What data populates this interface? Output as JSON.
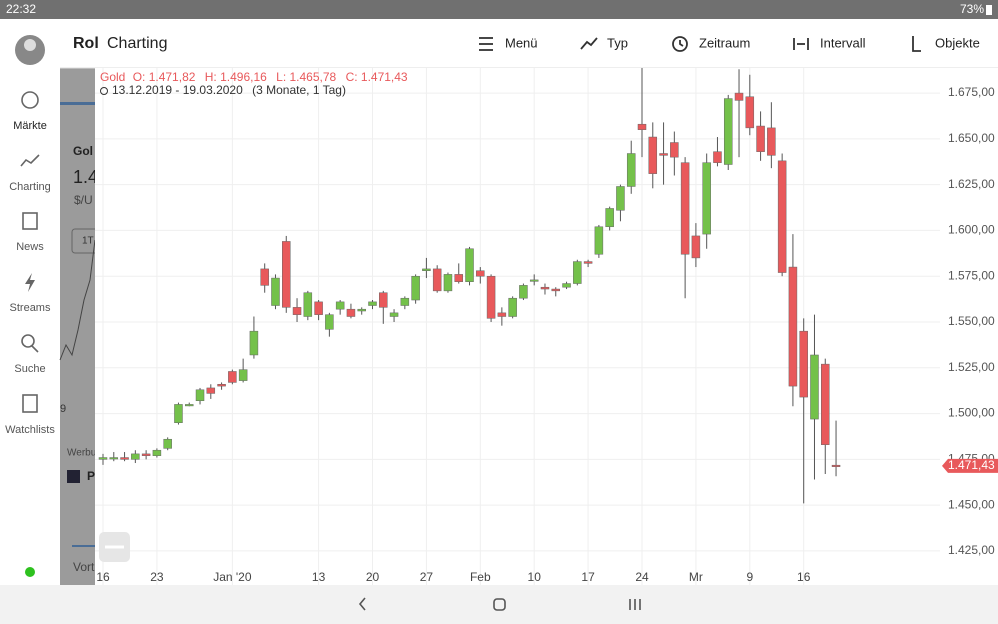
{
  "status_bar": {
    "time": "22:32",
    "battery": "73%"
  },
  "sidebar": {
    "items": [
      "Märkte",
      "Charting",
      "News",
      "Streams",
      "Suche",
      "Watchlists"
    ]
  },
  "background_page": {
    "title": "Rol",
    "texts": [
      "Gol",
      "1.4",
      "$/U",
      "1T",
      "Werbu",
      "P",
      "Vort",
      "9"
    ]
  },
  "toolbar": {
    "title": "Charting",
    "buttons": [
      "Menü",
      "Typ",
      "Zeitraum",
      "Intervall",
      "Objekte"
    ]
  },
  "chart_data": {
    "type": "candlestick",
    "legend_name": "Gold",
    "ohlc_labels": [
      "O: 1.471,82",
      "H: 1.496,16",
      "L: 1.465,78",
      "C: 1.471,43"
    ],
    "period": "13.12.2019 - 19.03.2020",
    "period_note": "(3 Monate, 1 Tag)",
    "colors": {
      "up": "#74c14a",
      "down": "#e8595b"
    },
    "grid": true,
    "x": [
      "2019-12-16",
      "2019-12-17",
      "2019-12-18",
      "2019-12-19",
      "2019-12-20",
      "2019-12-23",
      "2019-12-24",
      "2019-12-25",
      "2019-12-26",
      "2019-12-27",
      "2019-12-30",
      "2019-12-31",
      "2020-01-01",
      "2020-01-02",
      "2020-01-03",
      "2020-01-06",
      "2020-01-07",
      "2020-01-08",
      "2020-01-09",
      "2020-01-10",
      "2020-01-13",
      "2020-01-14",
      "2020-01-15",
      "2020-01-16",
      "2020-01-17",
      "2020-01-20",
      "2020-01-21",
      "2020-01-22",
      "2020-01-23",
      "2020-01-24",
      "2020-01-27",
      "2020-01-28",
      "2020-01-29",
      "2020-01-30",
      "2020-01-31",
      "2020-02-03",
      "2020-02-04",
      "2020-02-05",
      "2020-02-06",
      "2020-02-07",
      "2020-02-10",
      "2020-02-11",
      "2020-02-12",
      "2020-02-13",
      "2020-02-14",
      "2020-02-17",
      "2020-02-18",
      "2020-02-19",
      "2020-02-20",
      "2020-02-21",
      "2020-02-24",
      "2020-02-25",
      "2020-02-26",
      "2020-02-27",
      "2020-02-28",
      "2020-03-02",
      "2020-03-03",
      "2020-03-04",
      "2020-03-05",
      "2020-03-06",
      "2020-03-09",
      "2020-03-10",
      "2020-03-11",
      "2020-03-12",
      "2020-03-13",
      "2020-03-16",
      "2020-03-17",
      "2020-03-18",
      "2020-03-19"
    ],
    "open": [
      1475,
      1476,
      1476,
      1475,
      1478,
      1477,
      1481,
      1495,
      1505,
      1507,
      1514,
      1516,
      1523,
      1518,
      1532,
      1579,
      1559,
      1594,
      1558,
      1553,
      1561,
      1546,
      1557,
      1557,
      1556,
      1559,
      1566,
      1553,
      1559,
      1562,
      1578,
      1579,
      1567,
      1576,
      1572,
      1578,
      1575,
      1555,
      1553,
      1563,
      1573,
      1569,
      1568,
      1569,
      1571,
      1583,
      1587,
      1602,
      1611,
      1624,
      1658,
      1651,
      1642,
      1648,
      1637,
      1597,
      1598,
      1643,
      1636,
      1675,
      1673,
      1657,
      1656,
      1638,
      1580,
      1545,
      1497,
      1527,
      1471.82
    ],
    "high": [
      1478,
      1479,
      1479,
      1480,
      1480,
      1481,
      1487,
      1506,
      1506,
      1514,
      1516,
      1517,
      1524,
      1530,
      1553,
      1582,
      1576,
      1597,
      1563,
      1567,
      1562,
      1555,
      1562,
      1560,
      1558,
      1562,
      1567,
      1557,
      1564,
      1576,
      1585,
      1581,
      1577,
      1582,
      1591,
      1580,
      1576,
      1558,
      1564,
      1571,
      1576,
      1571,
      1569,
      1572,
      1584,
      1584,
      1603,
      1613,
      1625,
      1649,
      1689,
      1659,
      1659,
      1654,
      1640,
      1604,
      1642,
      1651,
      1674,
      1688,
      1685,
      1665,
      1670,
      1642,
      1598,
      1552,
      1554,
      1530,
      1496.16
    ],
    "low": [
      1472,
      1474,
      1474,
      1473,
      1475,
      1476,
      1480,
      1494,
      1504,
      1505,
      1508,
      1513,
      1516,
      1517,
      1530,
      1566,
      1557,
      1555,
      1550,
      1551,
      1551,
      1542,
      1554,
      1552,
      1554,
      1557,
      1549,
      1550,
      1557,
      1560,
      1574,
      1566,
      1566,
      1571,
      1570,
      1571,
      1550,
      1548,
      1552,
      1562,
      1570,
      1565,
      1564,
      1568,
      1570,
      1580,
      1585,
      1600,
      1605,
      1620,
      1640,
      1623,
      1625,
      1630,
      1563,
      1580,
      1590,
      1635,
      1633,
      1640,
      1652,
      1638,
      1634,
      1575,
      1504,
      1451,
      1464,
      1467,
      1465.78
    ],
    "close": [
      1476,
      1476,
      1475,
      1478,
      1477,
      1480,
      1486,
      1505,
      1505,
      1513,
      1511,
      1515,
      1517,
      1524,
      1545,
      1570,
      1574,
      1558,
      1554,
      1566,
      1554,
      1554,
      1561,
      1553,
      1557,
      1561,
      1558,
      1555,
      1563,
      1575,
      1579,
      1567,
      1576,
      1572,
      1590,
      1575,
      1552,
      1553,
      1563,
      1570,
      1573,
      1568,
      1567,
      1571,
      1583,
      1582,
      1602,
      1612,
      1624,
      1642,
      1655,
      1631,
      1641,
      1640,
      1587,
      1585,
      1637,
      1637,
      1672,
      1671,
      1656,
      1643,
      1641,
      1577,
      1515,
      1509,
      1532,
      1483,
      1471.43
    ],
    "ylim": [
      1406.4,
      1687.6
    ],
    "yticks": [
      {
        "value": 1425,
        "label": "1.425,00"
      },
      {
        "value": 1450,
        "label": "1.450,00"
      },
      {
        "value": 1475,
        "label": "1.475,00"
      },
      {
        "value": 1500,
        "label": "1.500,00"
      },
      {
        "value": 1525,
        "label": "1.525,00"
      },
      {
        "value": 1550,
        "label": "1.550,00"
      },
      {
        "value": 1575,
        "label": "1.575,00"
      },
      {
        "value": 1600,
        "label": "1.600,00"
      },
      {
        "value": 1625,
        "label": "1.625,00"
      },
      {
        "value": 1650,
        "label": "1.650,00"
      },
      {
        "value": 1675,
        "label": "1.675,00"
      }
    ],
    "xticks": [
      {
        "value": "2019-12-16",
        "label": "16"
      },
      {
        "value": "2019-12-23",
        "label": "23"
      },
      {
        "value": "2020-01-01",
        "label": "Jan '20"
      },
      {
        "value": "2020-01-13",
        "label": "13"
      },
      {
        "value": "2020-01-20",
        "label": "20"
      },
      {
        "value": "2020-01-27",
        "label": "27"
      },
      {
        "value": "2020-02-03",
        "label": "Feb"
      },
      {
        "value": "2020-02-10",
        "label": "10"
      },
      {
        "value": "2020-02-17",
        "label": "17"
      },
      {
        "value": "2020-02-24",
        "label": "24"
      },
      {
        "value": "2020-03-02",
        "label": "Mr"
      },
      {
        "value": "2020-03-09",
        "label": "9"
      },
      {
        "value": "2020-03-16",
        "label": "16"
      }
    ],
    "current_price": {
      "value": 1471.43,
      "label": "1.471,43"
    }
  }
}
